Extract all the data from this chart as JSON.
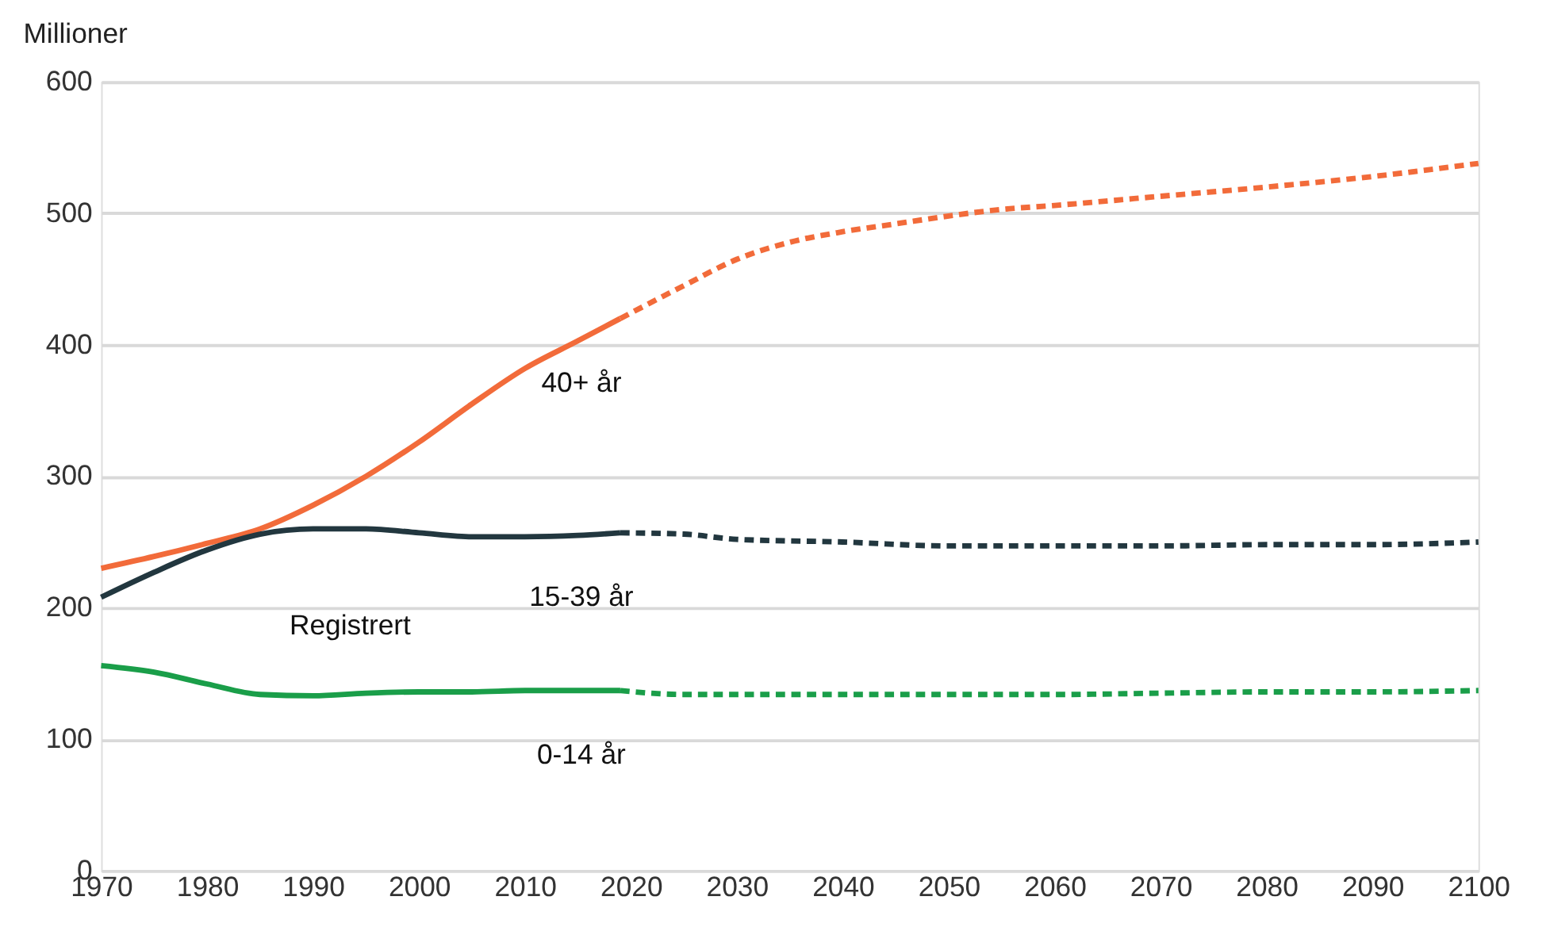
{
  "chart_data": {
    "type": "line",
    "ylabel": "Millioner",
    "xlim": [
      1970,
      2100
    ],
    "xticks": [
      1970,
      1980,
      1990,
      2000,
      2010,
      2020,
      2030,
      2040,
      2050,
      2060,
      2070,
      2080,
      2090,
      2100
    ],
    "ylim": [
      0,
      600
    ],
    "yticks": [
      0,
      100,
      200,
      300,
      400,
      500,
      600
    ],
    "grid": "y",
    "marker": "none",
    "series": [
      {
        "name": "40+ år",
        "color": "#f26b3a",
        "line_style": "solid",
        "x": [
          1970,
          1975,
          1980,
          1985,
          1990,
          1995,
          2000,
          2005,
          2010,
          2015,
          2019
        ],
        "values": [
          230,
          239,
          249,
          260,
          278,
          300,
          326,
          355,
          382,
          403,
          420
        ]
      },
      {
        "color": "#f26b3a",
        "line_style": "dashed",
        "x": [
          2019,
          2025,
          2030,
          2035,
          2040,
          2045,
          2050,
          2055,
          2060,
          2070,
          2080,
          2090,
          2100
        ],
        "values": [
          420,
          445,
          465,
          478,
          486,
          492,
          498,
          503,
          506,
          513,
          520,
          528,
          538
        ]
      },
      {
        "name": "15-39 år",
        "color": "#22373f",
        "line_style": "solid",
        "x": [
          1970,
          1975,
          1980,
          1985,
          1990,
          1995,
          2000,
          2005,
          2010,
          2015,
          2019
        ],
        "values": [
          208,
          227,
          244,
          256,
          260,
          260,
          257,
          254,
          254,
          255,
          257
        ]
      },
      {
        "color": "#22373f",
        "line_style": "dashed",
        "x": [
          2019,
          2025,
          2030,
          2040,
          2050,
          2060,
          2070,
          2080,
          2090,
          2100
        ],
        "values": [
          257,
          256,
          252,
          250,
          247,
          247,
          247,
          248,
          248,
          250
        ]
      },
      {
        "name": "0-14 år",
        "color": "#1a9e49",
        "line_style": "solid",
        "x": [
          1970,
          1975,
          1980,
          1985,
          1990,
          1995,
          2000,
          2005,
          2010,
          2015,
          2019
        ],
        "values": [
          156,
          151,
          142,
          134,
          133,
          135,
          136,
          136,
          137,
          137,
          137
        ]
      },
      {
        "color": "#1a9e49",
        "line_style": "dashed",
        "x": [
          2019,
          2025,
          2030,
          2040,
          2050,
          2060,
          2070,
          2080,
          2090,
          2100
        ],
        "values": [
          137,
          134,
          134,
          134,
          134,
          134,
          135,
          136,
          136,
          137
        ]
      }
    ],
    "annotations": [
      "Registrert"
    ]
  }
}
